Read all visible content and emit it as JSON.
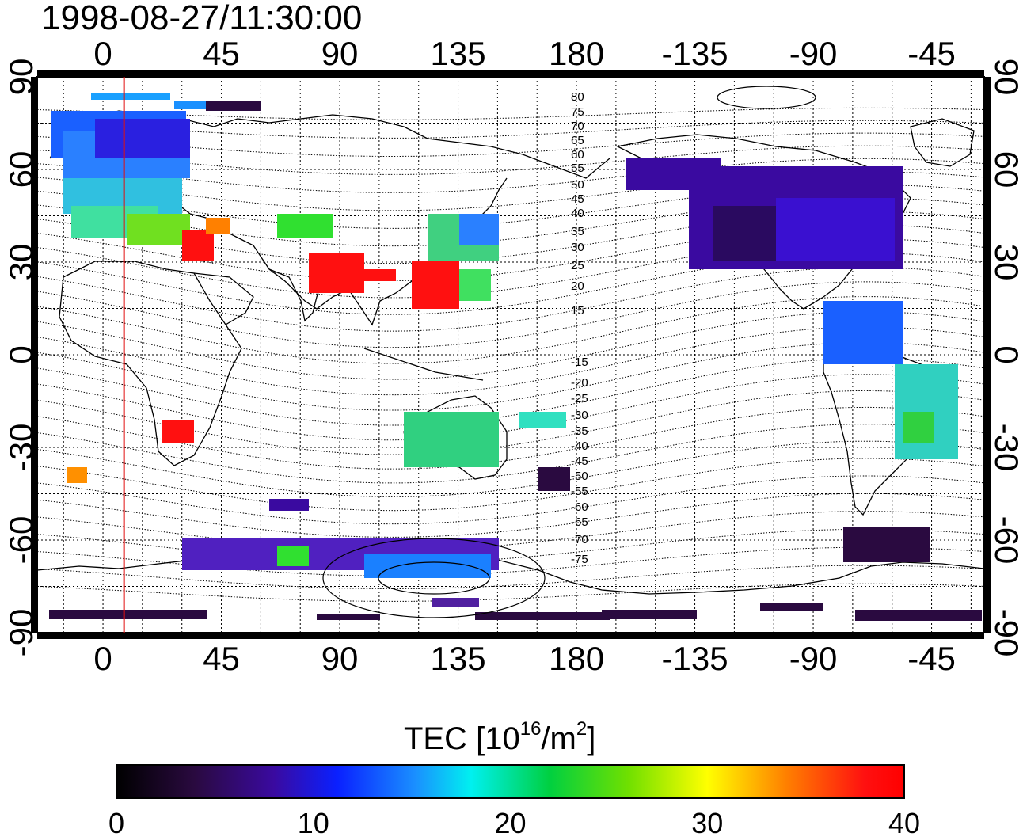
{
  "title": "1998-08-27/11:30:00",
  "top_lon_ticks": [
    "0",
    "45",
    "90",
    "135",
    "180",
    "-135",
    "-90",
    "-45"
  ],
  "bottom_lon_ticks": [
    "0",
    "45",
    "90",
    "135",
    "180",
    "-135",
    "-90",
    "-45"
  ],
  "lat_ticks_left": [
    "90",
    "60",
    "30",
    "0",
    "-30",
    "-60",
    "-90"
  ],
  "lat_ticks_right": [
    "90",
    "60",
    "30",
    "0",
    "-30",
    "-60",
    "-90"
  ],
  "contour_labels": [
    "80",
    "75",
    "70",
    "65",
    "60",
    "55",
    "50",
    "45",
    "40",
    "35",
    "30",
    "25",
    "20",
    "15",
    "-15",
    "-20",
    "-25",
    "-30",
    "-35",
    "-40",
    "-45",
    "-50",
    "-55",
    "-60",
    "-65",
    "-70",
    "-75"
  ],
  "colorbar": {
    "title_main": "TEC  [10",
    "title_sup1": "16",
    "title_mid": "/m",
    "title_sup2": "2",
    "title_end": "]",
    "tick_labels": [
      "0",
      "10",
      "20",
      "30",
      "40"
    ],
    "min": 0,
    "max": 40
  },
  "marker": {
    "longitude": 8,
    "color": "#e01010"
  },
  "map_extent": {
    "lon_start": -25,
    "lon_end": 335,
    "lat_min": -90,
    "lat_max": 90
  },
  "colors": {
    "frame": "#000000",
    "grid": "#000000",
    "coast": "#000000",
    "background": "#ffffff"
  }
}
